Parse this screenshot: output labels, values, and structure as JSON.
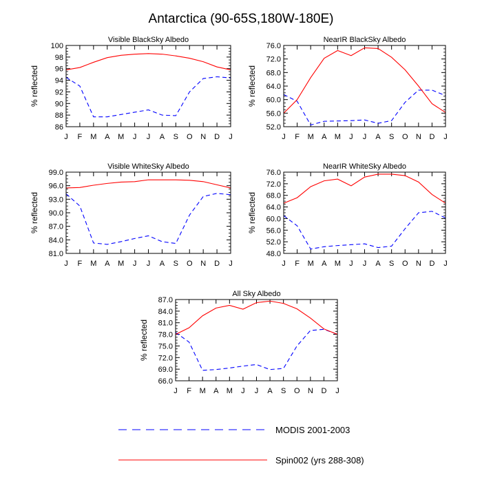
{
  "figure": {
    "title": "Antarctica (90-65S,180W-180E)"
  },
  "legend": [
    {
      "label": "MODIS 2001-2003",
      "color": "#0000ff",
      "style": "dashed"
    },
    {
      "label": "Spin002 (yrs 288-308)",
      "color": "#ff0000",
      "style": "solid"
    }
  ],
  "chart_data": [
    {
      "type": "line",
      "title": "Visible BlackSky Albedo",
      "xlabel": "",
      "ylabel": "% reflected",
      "categories": [
        "J",
        "F",
        "M",
        "A",
        "M",
        "J",
        "J",
        "A",
        "S",
        "O",
        "N",
        "D",
        "J"
      ],
      "ylim": [
        86,
        100
      ],
      "yticks": [
        "86",
        "88",
        "90",
        "92",
        "94",
        "96",
        "98",
        "100"
      ],
      "series": [
        {
          "name": "MODIS 2001-2003",
          "values": [
            94.5,
            93.0,
            87.7,
            87.7,
            88.1,
            88.5,
            88.9,
            88.0,
            87.9,
            92.0,
            94.3,
            94.6,
            94.4
          ]
        },
        {
          "name": "Spin002 (yrs 288-308)",
          "values": [
            95.8,
            96.2,
            97.1,
            97.9,
            98.3,
            98.5,
            98.6,
            98.5,
            98.2,
            97.8,
            97.2,
            96.3,
            95.8
          ]
        }
      ]
    },
    {
      "type": "line",
      "title": "NearIR BlackSky Albedo",
      "xlabel": "",
      "ylabel": "% reflected",
      "categories": [
        "J",
        "F",
        "M",
        "A",
        "M",
        "J",
        "J",
        "A",
        "S",
        "O",
        "N",
        "D",
        "J"
      ],
      "ylim": [
        52,
        76
      ],
      "yticks": [
        "52.0",
        "56.0",
        "60.0",
        "64.0",
        "68.0",
        "72.0",
        "76.0"
      ],
      "series": [
        {
          "name": "MODIS 2001-2003",
          "values": [
            61.5,
            59.5,
            52.5,
            53.6,
            53.7,
            53.8,
            54.0,
            53.0,
            53.8,
            59.2,
            62.8,
            62.8,
            61.2
          ]
        },
        {
          "name": "Spin002 (yrs 288-308)",
          "values": [
            56.0,
            60.0,
            66.5,
            72.2,
            74.5,
            73.0,
            75.3,
            75.1,
            72.5,
            68.8,
            64.0,
            58.8,
            56.2
          ]
        }
      ]
    },
    {
      "type": "line",
      "title": "Visible WhiteSky Albedo",
      "xlabel": "",
      "ylabel": "% reflected",
      "categories": [
        "J",
        "F",
        "M",
        "A",
        "M",
        "J",
        "J",
        "A",
        "S",
        "O",
        "N",
        "D",
        "J"
      ],
      "ylim": [
        81,
        99
      ],
      "yticks": [
        "81.0",
        "84.0",
        "87.0",
        "90.0",
        "93.0",
        "96.0",
        "99.0"
      ],
      "series": [
        {
          "name": "MODIS 2001-2003",
          "values": [
            94.2,
            91.5,
            83.3,
            83.0,
            83.6,
            84.3,
            84.9,
            83.6,
            83.2,
            89.5,
            93.6,
            94.3,
            94.0
          ]
        },
        {
          "name": "Spin002 (yrs 288-308)",
          "values": [
            95.5,
            95.6,
            96.1,
            96.5,
            96.8,
            96.9,
            97.3,
            97.3,
            97.3,
            97.2,
            96.9,
            96.2,
            95.5
          ]
        }
      ]
    },
    {
      "type": "line",
      "title": "NearIR WhiteSky Albedo",
      "xlabel": "",
      "ylabel": "% reflected",
      "categories": [
        "J",
        "F",
        "M",
        "A",
        "M",
        "J",
        "J",
        "A",
        "S",
        "O",
        "N",
        "D",
        "J"
      ],
      "ylim": [
        48,
        76
      ],
      "yticks": [
        "48.0",
        "52.0",
        "56.0",
        "60.0",
        "64.0",
        "68.0",
        "72.0",
        "76.0"
      ],
      "series": [
        {
          "name": "MODIS 2001-2003",
          "values": [
            61.0,
            57.5,
            49.5,
            50.3,
            50.7,
            51.0,
            51.3,
            50.0,
            50.5,
            56.5,
            62.0,
            62.5,
            60.2
          ]
        },
        {
          "name": "Spin002 (yrs 288-308)",
          "values": [
            65.3,
            67.2,
            71.0,
            73.0,
            73.6,
            71.3,
            74.3,
            75.3,
            75.3,
            74.8,
            72.6,
            68.3,
            65.3
          ]
        }
      ]
    },
    {
      "type": "line",
      "title": "All Sky Albedo",
      "xlabel": "",
      "ylabel": "% reflected",
      "categories": [
        "J",
        "F",
        "M",
        "A",
        "M",
        "J",
        "J",
        "A",
        "S",
        "O",
        "N",
        "D",
        "J"
      ],
      "ylim": [
        66,
        87
      ],
      "yticks": [
        "66.0",
        "69.0",
        "72.0",
        "75.0",
        "78.0",
        "81.0",
        "84.0",
        "87.0"
      ],
      "series": [
        {
          "name": "MODIS 2001-2003",
          "values": [
            78.5,
            76.0,
            68.7,
            68.9,
            69.3,
            69.8,
            70.2,
            68.9,
            69.2,
            75.0,
            79.0,
            79.3,
            78.0
          ]
        },
        {
          "name": "Spin002 (yrs 288-308)",
          "values": [
            78.0,
            79.7,
            82.8,
            84.8,
            85.5,
            84.5,
            86.2,
            86.6,
            86.0,
            84.6,
            82.2,
            79.4,
            78.0
          ]
        }
      ]
    }
  ]
}
